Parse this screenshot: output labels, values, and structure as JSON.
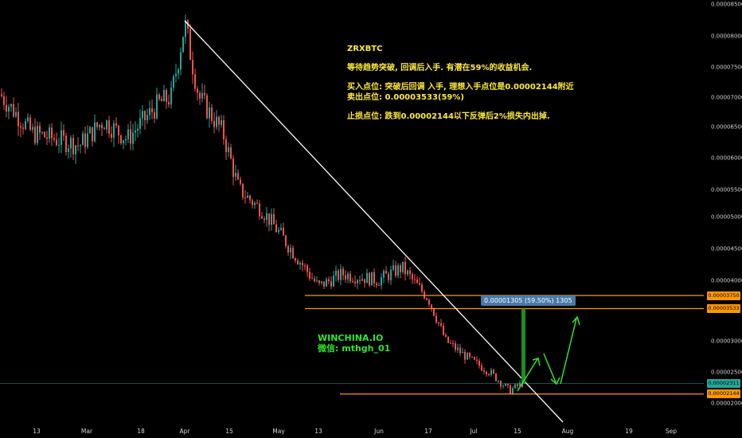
{
  "chart_data": {
    "type": "candlestick",
    "symbol": "ZRXBTC",
    "y_axis": {
      "ticks": [
        "0.00008500",
        "0.00008000",
        "0.00007500",
        "0.00007000",
        "0.00006500",
        "0.00006000",
        "0.00005500",
        "0.00005000",
        "0.00004500",
        "0.00004000",
        "0.00003000",
        "0.00002500",
        "0.00002000"
      ],
      "range": [
        1.95e-05,
        8.55e-05
      ]
    },
    "x_axis": {
      "ticks": [
        "13",
        "Mar",
        "18",
        "Apr",
        "15",
        "May",
        "13",
        "Jun",
        "17",
        "Jul",
        "15",
        "Aug",
        "19",
        "Sep"
      ]
    },
    "price_path": [
      [
        "Feb 1",
        7.1e-05
      ],
      [
        "Feb 10",
        6.5e-05
      ],
      [
        "Feb 20",
        6.2e-05
      ],
      [
        "Mar 1",
        6.6e-05
      ],
      [
        "Mar 10",
        6.3e-05
      ],
      [
        "Mar 18",
        6.9e-05
      ],
      [
        "Mar 25",
        7e-05
      ],
      [
        "Apr 1",
        8.2e-05
      ],
      [
        "Apr 8",
        7e-05
      ],
      [
        "Apr 20",
        6.4e-05
      ],
      [
        "Apr 30",
        5.5e-05
      ],
      [
        "May 6",
        5.1e-05
      ],
      [
        "May 13",
        3.9e-05
      ],
      [
        "May 20",
        4.1e-05
      ],
      [
        "Jun 1",
        4e-05
      ],
      [
        "Jun 10",
        4.2e-05
      ],
      [
        "Jun 17",
        3.7e-05
      ],
      [
        "Jun 24",
        3e-05
      ],
      [
        "Jul 1",
        2.7e-05
      ],
      [
        "Jul 8",
        2.5e-05
      ],
      [
        "Jul 14",
        2.2e-05
      ],
      [
        "Jul 18",
        2.31e-05
      ]
    ],
    "levels": [
      {
        "label": "0.00003750",
        "value": 3.75e-05,
        "color": "#ff9800"
      },
      {
        "label": "0.00003533",
        "value": 3.533e-05,
        "color": "#ff9800"
      },
      {
        "label": "0.00002311",
        "value": 2.311e-05,
        "color": "#26a69a"
      },
      {
        "label": "0.00002144",
        "value": 2.144e-05,
        "color": "#ff9800"
      }
    ],
    "measure_label": "0.00001305 (59.50%) 1305",
    "colors": {
      "up": "#26a69a",
      "down": "#ef5350",
      "trendline": "#ffffff",
      "level": "#ff9800",
      "arrow": "#2ee62e",
      "background": "#000000"
    }
  },
  "annotations": {
    "title": "ZRXBTC",
    "line1": "等待趋势突破, 回调后入手. 有潜在59%的收益机会.",
    "line2": "买入点位: 突破后回调 入手, 理想入手点位是0.00002144附近",
    "line3": "卖出点位: 0.00003533(59%)",
    "line4": "止损点位: 跌到0.00002144以下反弹后2%损失内出掉.",
    "watermark_1": "WINCHINA.IO",
    "watermark_2": "微信: mthgh_01"
  }
}
